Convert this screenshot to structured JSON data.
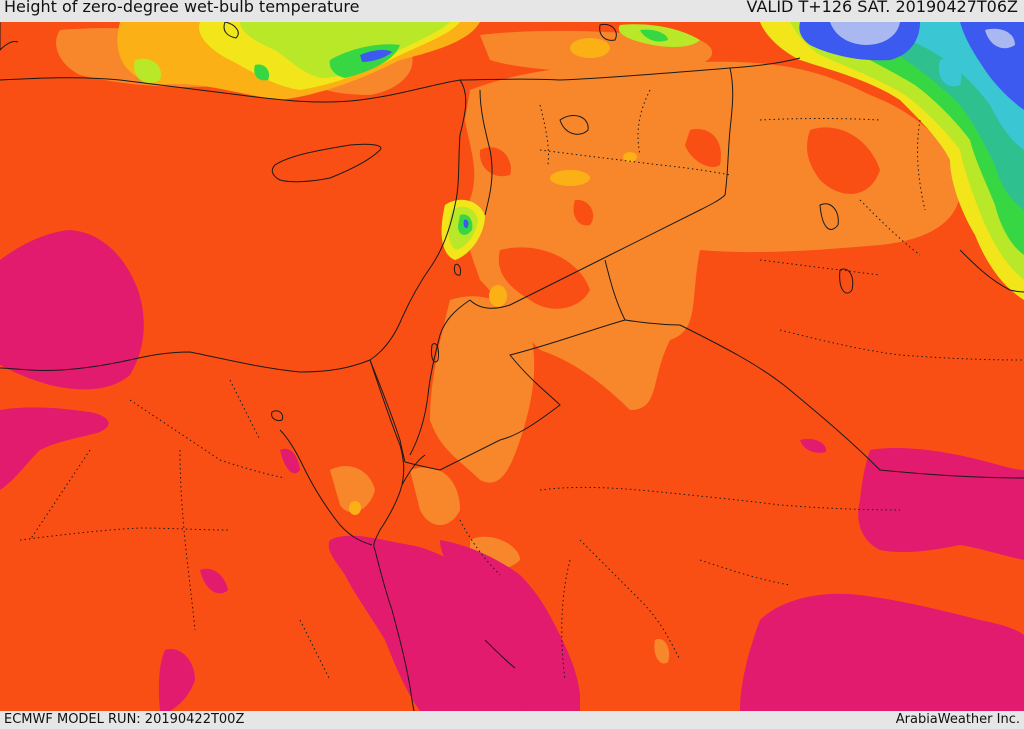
{
  "header": {
    "title": "Height of zero-degree wet-bulb temperature",
    "valid": "VALID T+126 SAT. 20190427T06Z"
  },
  "footer": {
    "model_run": "ECMWF MODEL RUN: 20190422T00Z",
    "credit": "ArabiaWeather Inc."
  },
  "colors": {
    "base": "#fa4f14",
    "light_orange": "#f8872c",
    "amber": "#fbb015",
    "yellow": "#f2e61b",
    "lime": "#b9e829",
    "green": "#37d643",
    "teal": "#2ec08e",
    "cyan": "#3ac6d3",
    "blue": "#3c5af0",
    "lavender": "#a9b8f0",
    "magenta": "#e21b6e",
    "border_line": "#1a1a1a"
  }
}
